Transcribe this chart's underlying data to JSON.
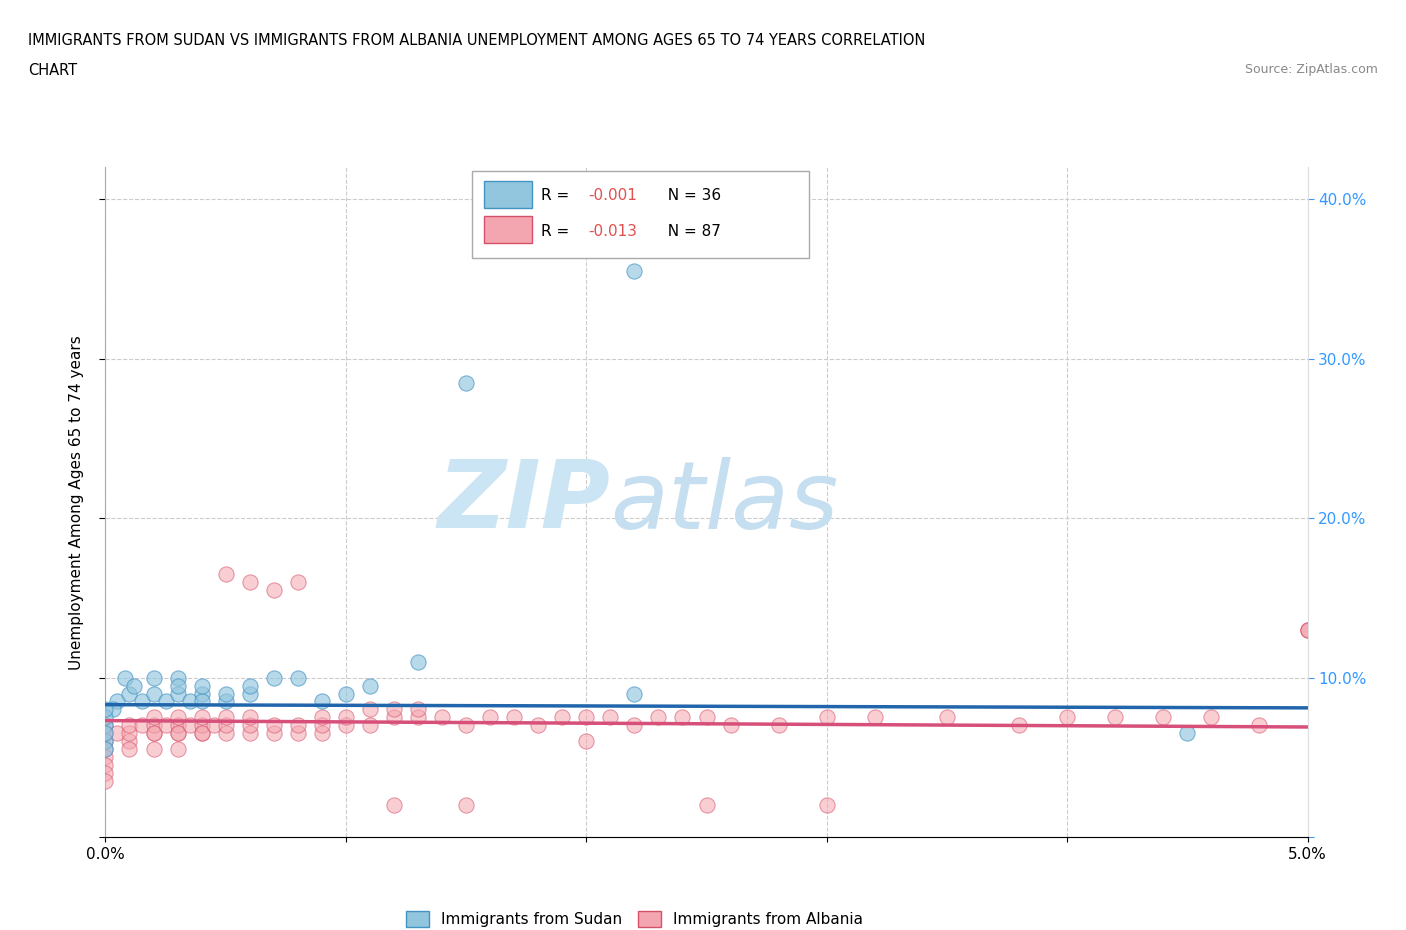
{
  "title_line1": "IMMIGRANTS FROM SUDAN VS IMMIGRANTS FROM ALBANIA UNEMPLOYMENT AMONG AGES 65 TO 74 YEARS CORRELATION",
  "title_line2": "CHART",
  "source_text": "Source: ZipAtlas.com",
  "ylabel": "Unemployment Among Ages 65 to 74 years",
  "xlim": [
    0.0,
    0.05
  ],
  "ylim": [
    0.0,
    0.42
  ],
  "x_ticks": [
    0.0,
    0.01,
    0.02,
    0.03,
    0.04,
    0.05
  ],
  "x_tick_labels": [
    "0.0%",
    "",
    "",
    "",
    "",
    "5.0%"
  ],
  "y_ticks": [
    0.0,
    0.1,
    0.2,
    0.3,
    0.4
  ],
  "y_tick_labels_right": [
    "",
    "10.0%",
    "20.0%",
    "30.0%",
    "40.0%"
  ],
  "legend_sudan_R": "R = -0.001",
  "legend_sudan_N": "N = 36",
  "legend_albania_R": "R = -0.013",
  "legend_albania_N": "N = 87",
  "sudan_color": "#92c5de",
  "albania_color": "#f4a6b0",
  "sudan_edge_color": "#4393c3",
  "albania_edge_color": "#d6506a",
  "sudan_line_color": "#2166ac",
  "albania_line_color": "#d6507a",
  "watermark_zip_color": "#cce5f5",
  "watermark_atlas_color": "#c5dff0",
  "sudan_line_y": 0.082,
  "albania_line_y": 0.071,
  "sudan_points_x": [
    0.0005,
    0.001,
    0.0008,
    0.0012,
    0.0015,
    0.0003,
    0.0,
    0.0,
    0.0,
    0.0,
    0.0,
    0.0,
    0.002,
    0.002,
    0.0025,
    0.003,
    0.003,
    0.003,
    0.0035,
    0.004,
    0.004,
    0.004,
    0.005,
    0.005,
    0.006,
    0.006,
    0.007,
    0.008,
    0.009,
    0.01,
    0.011,
    0.013,
    0.015,
    0.022,
    0.022,
    0.045
  ],
  "sudan_points_y": [
    0.085,
    0.09,
    0.1,
    0.095,
    0.085,
    0.08,
    0.06,
    0.07,
    0.075,
    0.08,
    0.065,
    0.055,
    0.09,
    0.1,
    0.085,
    0.09,
    0.1,
    0.095,
    0.085,
    0.09,
    0.085,
    0.095,
    0.085,
    0.09,
    0.09,
    0.095,
    0.1,
    0.1,
    0.085,
    0.09,
    0.095,
    0.11,
    0.285,
    0.355,
    0.09,
    0.065
  ],
  "albania_points_x": [
    0.0,
    0.0,
    0.0,
    0.0,
    0.0,
    0.0,
    0.0,
    0.0,
    0.0005,
    0.001,
    0.001,
    0.001,
    0.001,
    0.0015,
    0.002,
    0.002,
    0.002,
    0.002,
    0.002,
    0.0025,
    0.003,
    0.003,
    0.003,
    0.003,
    0.003,
    0.0035,
    0.004,
    0.004,
    0.004,
    0.004,
    0.0045,
    0.005,
    0.005,
    0.005,
    0.005,
    0.006,
    0.006,
    0.006,
    0.006,
    0.007,
    0.007,
    0.007,
    0.008,
    0.008,
    0.008,
    0.009,
    0.009,
    0.009,
    0.01,
    0.01,
    0.011,
    0.011,
    0.012,
    0.012,
    0.013,
    0.013,
    0.014,
    0.015,
    0.016,
    0.017,
    0.018,
    0.019,
    0.02,
    0.021,
    0.022,
    0.023,
    0.024,
    0.025,
    0.026,
    0.028,
    0.03,
    0.032,
    0.035,
    0.038,
    0.04,
    0.042,
    0.044,
    0.046,
    0.048,
    0.05,
    0.02,
    0.025,
    0.03,
    0.012,
    0.015,
    0.05,
    0.05
  ],
  "albania_points_y": [
    0.07,
    0.06,
    0.065,
    0.055,
    0.05,
    0.045,
    0.04,
    0.035,
    0.065,
    0.06,
    0.065,
    0.07,
    0.055,
    0.07,
    0.065,
    0.07,
    0.075,
    0.065,
    0.055,
    0.07,
    0.065,
    0.07,
    0.075,
    0.065,
    0.055,
    0.07,
    0.065,
    0.07,
    0.075,
    0.065,
    0.07,
    0.065,
    0.07,
    0.075,
    0.165,
    0.065,
    0.07,
    0.075,
    0.16,
    0.065,
    0.07,
    0.155,
    0.065,
    0.07,
    0.16,
    0.065,
    0.07,
    0.075,
    0.07,
    0.075,
    0.07,
    0.08,
    0.075,
    0.08,
    0.075,
    0.08,
    0.075,
    0.07,
    0.075,
    0.075,
    0.07,
    0.075,
    0.075,
    0.075,
    0.07,
    0.075,
    0.075,
    0.075,
    0.07,
    0.07,
    0.075,
    0.075,
    0.075,
    0.07,
    0.075,
    0.075,
    0.075,
    0.075,
    0.07,
    0.13,
    0.06,
    0.02,
    0.02,
    0.02,
    0.02,
    0.13,
    0.13
  ]
}
